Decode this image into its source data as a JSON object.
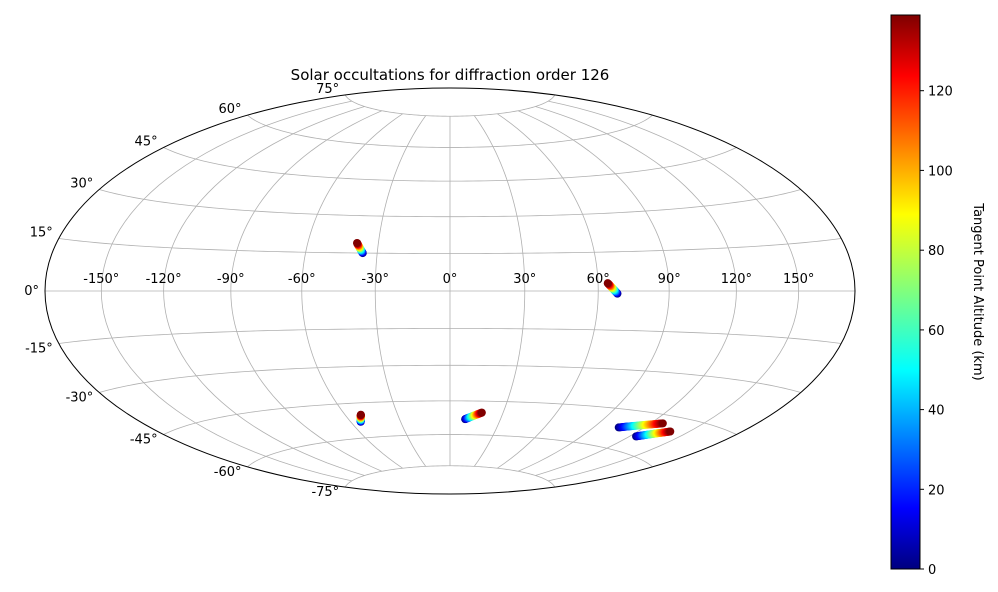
{
  "chart_data": {
    "type": "scatter",
    "projection": "hammer",
    "title": "Solar occultations for diffraction order 126",
    "grid": true,
    "lon_ticks": [
      "-150°",
      "-120°",
      "-90°",
      "-60°",
      "-30°",
      "0°",
      "30°",
      "60°",
      "90°",
      "120°",
      "150°"
    ],
    "lon_tick_values": [
      -150,
      -120,
      -90,
      -60,
      -30,
      0,
      30,
      60,
      90,
      120,
      150
    ],
    "lat_ticks": [
      "75°",
      "60°",
      "45°",
      "30°",
      "15°",
      "0°",
      "-15°",
      "-30°",
      "-45°",
      "-60°",
      "-75°"
    ],
    "lat_tick_values": [
      75,
      60,
      45,
      30,
      15,
      0,
      -15,
      -30,
      -45,
      -60,
      -75
    ],
    "colorbar": {
      "label": "Tangent Point Altitude (km)",
      "range": [
        0,
        139
      ],
      "ticks": [
        "0",
        "20",
        "40",
        "60",
        "80",
        "100",
        "120"
      ],
      "tick_values": [
        0,
        20,
        40,
        60,
        80,
        100,
        120
      ],
      "colormap": "jet"
    },
    "tracks": [
      {
        "lon_start": -36,
        "lat_start": 15,
        "lon_end": -39,
        "lat_end": 19,
        "alt_start": 0,
        "alt_end": 139
      },
      {
        "lon_start": 68,
        "lat_start": -1,
        "lon_end": 64,
        "lat_end": 3,
        "alt_start": 0,
        "alt_end": 139
      },
      {
        "lon_start": -54,
        "lat_start": -53,
        "lon_end": -51,
        "lat_end": -50,
        "alt_start": 0,
        "alt_end": 139
      },
      {
        "lon_start": 9,
        "lat_start": -53,
        "lon_end": 18,
        "lat_end": -50,
        "alt_start": 0,
        "alt_end": 139
      },
      {
        "lon_start": 105,
        "lat_start": -52,
        "lon_end": 127,
        "lat_end": -48,
        "alt_start": 0,
        "alt_end": 139
      },
      {
        "lon_start": 124,
        "lat_start": -54,
        "lon_end": 139,
        "lat_end": -50,
        "alt_start": 0,
        "alt_end": 139
      }
    ]
  }
}
